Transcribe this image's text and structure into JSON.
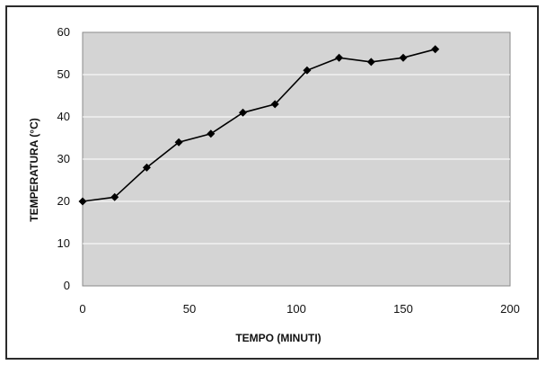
{
  "chart_data": {
    "type": "line",
    "title": "",
    "xlabel": "TEMPO (MINUTI)",
    "ylabel": "TEMPERATURA (°C)",
    "xlim": [
      0,
      200
    ],
    "ylim": [
      0,
      60
    ],
    "xticks": [
      0,
      50,
      100,
      150,
      200
    ],
    "yticks": [
      0,
      10,
      20,
      30,
      40,
      50,
      60
    ],
    "grid": "horizontal",
    "legend": "none",
    "colors": {
      "plot_background": "#d4d4d4",
      "line": "#000000",
      "marker": "#000000",
      "grid": "#ffffff",
      "frame": "#2b2b2b"
    },
    "series": [
      {
        "marker": "diamond",
        "x": [
          0,
          15,
          30,
          45,
          60,
          75,
          90,
          105,
          120,
          135,
          150,
          165
        ],
        "y": [
          20,
          21,
          28,
          34,
          36,
          41,
          43,
          51,
          54,
          53,
          54,
          56
        ]
      }
    ]
  }
}
